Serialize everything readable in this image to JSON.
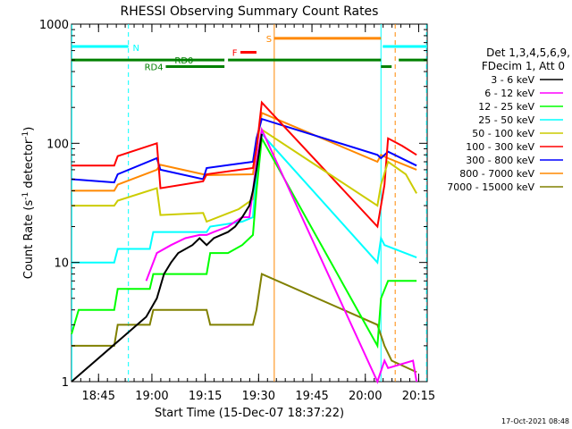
{
  "chart_data": {
    "type": "line",
    "title": "RHESSI Observing Summary Count Rates",
    "xlabel": "Start Time (15-Dec-07 18:37:22)",
    "ylabel": "Count Rate (s",
    "ylabel_sup1": "-1",
    "ylabel_mid": " detector",
    "ylabel_sup2": "-1",
    "ylabel_end": ")",
    "yscale": "log",
    "ylim": [
      1,
      1000
    ],
    "xlim_minutes": [
      0,
      100
    ],
    "x_ticks": [
      {
        "label": "18:45",
        "t": 7.6
      },
      {
        "label": "19:00",
        "t": 22.6
      },
      {
        "label": "19:15",
        "t": 37.6
      },
      {
        "label": "19:30",
        "t": 52.6
      },
      {
        "label": "19:45",
        "t": 67.6
      },
      {
        "label": "20:00",
        "t": 82.6
      },
      {
        "label": "20:15",
        "t": 97.6
      }
    ],
    "y_ticks": [
      {
        "label": "1",
        "v": 1
      },
      {
        "label": "10",
        "v": 10
      },
      {
        "label": "100",
        "v": 100
      },
      {
        "label": "1000",
        "v": 1000
      }
    ],
    "legend_header": [
      "Det 1,3,4,5,6,9,",
      "FDecim 1, Att 0"
    ],
    "series": [
      {
        "name": "3 - 6 keV",
        "color": "#000000",
        "points": [
          [
            0,
            1
          ],
          [
            21,
            3.5
          ],
          [
            24,
            5
          ],
          [
            26,
            8
          ],
          [
            28,
            10
          ],
          [
            30,
            12
          ],
          [
            34,
            14
          ],
          [
            36,
            16
          ],
          [
            38,
            14
          ],
          [
            40,
            16
          ],
          [
            44,
            18
          ],
          [
            46,
            20
          ],
          [
            48,
            24
          ],
          [
            50,
            30
          ],
          [
            51,
            40
          ],
          [
            52,
            60
          ],
          [
            53.5,
            120
          ]
        ]
      },
      {
        "name": "6 - 12 keV",
        "color": "#ff00ff",
        "points": [
          [
            21,
            7
          ],
          [
            24,
            12
          ],
          [
            28,
            14
          ],
          [
            32,
            16
          ],
          [
            36,
            17
          ],
          [
            38,
            17
          ],
          [
            40,
            18
          ],
          [
            44,
            20
          ],
          [
            46,
            22
          ],
          [
            48,
            24
          ],
          [
            50,
            24
          ],
          [
            51,
            40
          ],
          [
            52,
            70
          ],
          [
            53.5,
            130
          ],
          [
            86,
            1
          ],
          [
            88,
            1.5
          ],
          [
            89,
            1.3
          ],
          [
            96,
            1.5
          ],
          [
            97,
            1
          ]
        ]
      },
      {
        "name": "12 - 25 keV",
        "color": "#00ff00",
        "points": [
          [
            0,
            2.5
          ],
          [
            2,
            4
          ],
          [
            12,
            4
          ],
          [
            13,
            6
          ],
          [
            22,
            6
          ],
          [
            23,
            8
          ],
          [
            38,
            8
          ],
          [
            39,
            12
          ],
          [
            44,
            12
          ],
          [
            48,
            14
          ],
          [
            51,
            17
          ],
          [
            52,
            40
          ],
          [
            53.5,
            110
          ],
          [
            86,
            2
          ],
          [
            87,
            5
          ],
          [
            89,
            7
          ],
          [
            97,
            7
          ]
        ]
      },
      {
        "name": "25 - 50 keV",
        "color": "#00ffff",
        "points": [
          [
            0,
            10
          ],
          [
            12,
            10
          ],
          [
            13,
            13
          ],
          [
            22,
            13
          ],
          [
            23,
            18
          ],
          [
            38,
            18
          ],
          [
            39,
            20
          ],
          [
            48,
            22
          ],
          [
            51,
            24
          ],
          [
            52,
            55
          ],
          [
            53.5,
            120
          ],
          [
            86,
            10
          ],
          [
            87,
            16
          ],
          [
            88,
            14
          ],
          [
            97,
            11
          ]
        ]
      },
      {
        "name": "50 - 100 keV",
        "color": "#cccc00",
        "points": [
          [
            0,
            30
          ],
          [
            12,
            30
          ],
          [
            13,
            33
          ],
          [
            24,
            42
          ],
          [
            25,
            25
          ],
          [
            37,
            26
          ],
          [
            38,
            22
          ],
          [
            47,
            28
          ],
          [
            51,
            34
          ],
          [
            52,
            60
          ],
          [
            53.5,
            130
          ],
          [
            86,
            30
          ],
          [
            87,
            45
          ],
          [
            89,
            70
          ],
          [
            94,
            55
          ],
          [
            97,
            38
          ]
        ]
      },
      {
        "name": "100 - 300 keV",
        "color": "#ff0000",
        "points": [
          [
            0,
            65
          ],
          [
            12,
            65
          ],
          [
            13,
            78
          ],
          [
            24,
            100
          ],
          [
            25,
            42
          ],
          [
            37,
            48
          ],
          [
            38,
            55
          ],
          [
            51,
            62
          ],
          [
            52,
            90
          ],
          [
            53.5,
            220
          ],
          [
            86,
            20
          ],
          [
            87,
            30
          ],
          [
            88,
            45
          ],
          [
            89,
            110
          ],
          [
            93,
            95
          ],
          [
            97,
            80
          ]
        ]
      },
      {
        "name": "300 - 800 keV",
        "color": "#0000ff",
        "points": [
          [
            0,
            50
          ],
          [
            12,
            47
          ],
          [
            13,
            55
          ],
          [
            24,
            75
          ],
          [
            25,
            60
          ],
          [
            37,
            50
          ],
          [
            38,
            62
          ],
          [
            51,
            70
          ],
          [
            52,
            110
          ],
          [
            53.5,
            160
          ],
          [
            86,
            80
          ],
          [
            87,
            75
          ],
          [
            89,
            85
          ],
          [
            97,
            65
          ]
        ]
      },
      {
        "name": "800 - 7000 keV",
        "color": "#ff8800",
        "points": [
          [
            0,
            40
          ],
          [
            12,
            40
          ],
          [
            13,
            45
          ],
          [
            24,
            60
          ],
          [
            25,
            66
          ],
          [
            37,
            55
          ],
          [
            38,
            54
          ],
          [
            51,
            55
          ],
          [
            52,
            90
          ],
          [
            53.5,
            180
          ],
          [
            86,
            70
          ],
          [
            87,
            80
          ],
          [
            89,
            75
          ],
          [
            97,
            60
          ]
        ]
      },
      {
        "name": "7000 - 15000 keV",
        "color": "#808000",
        "points": [
          [
            0,
            2
          ],
          [
            12,
            2
          ],
          [
            13,
            3
          ],
          [
            22,
            3
          ],
          [
            23,
            4
          ],
          [
            38,
            4
          ],
          [
            39,
            3
          ],
          [
            48,
            3
          ],
          [
            51,
            3
          ],
          [
            52,
            4
          ],
          [
            53.5,
            8
          ],
          [
            86,
            3
          ],
          [
            88,
            2
          ],
          [
            90,
            1.5
          ],
          [
            97,
            1.2
          ]
        ]
      }
    ],
    "flags": [
      {
        "label": "N",
        "color": "#00ffff",
        "segments": [
          [
            0,
            16
          ],
          [
            87.5,
            100
          ]
        ],
        "row_value": 650
      },
      {
        "label": "S",
        "color": "#ff8800",
        "segments": [
          [
            57,
            87
          ]
        ],
        "row_value": 760
      },
      {
        "label": "F",
        "color": "#ff0000",
        "segments": [
          [
            47.5,
            52
          ]
        ],
        "row_value": 580
      },
      {
        "label": "RD0",
        "color": "#008000",
        "segments": [
          [
            0,
            43
          ],
          [
            44,
            87
          ],
          [
            92,
            100
          ]
        ],
        "row_value": 500
      },
      {
        "label": "RD4",
        "color": "#008000",
        "segments": [
          [
            26.5,
            43
          ],
          [
            87,
            90
          ]
        ],
        "row_value": 440
      }
    ],
    "vertical_markers": [
      {
        "t": 0.1,
        "color": "#00ffff",
        "style": "solid"
      },
      {
        "t": 16,
        "color": "#00ffff",
        "style": "dashed"
      },
      {
        "t": 57,
        "color": "#ff8800",
        "style": "solid"
      },
      {
        "t": 87,
        "color": "#00ffff",
        "style": "solid"
      },
      {
        "t": 91,
        "color": "#ff8800",
        "style": "dashed"
      },
      {
        "t": 99.8,
        "color": "#00ffff",
        "style": "dashed"
      }
    ],
    "grid": false,
    "legend_position": "right",
    "footer_date": "17-Oct-2021 08:48"
  }
}
